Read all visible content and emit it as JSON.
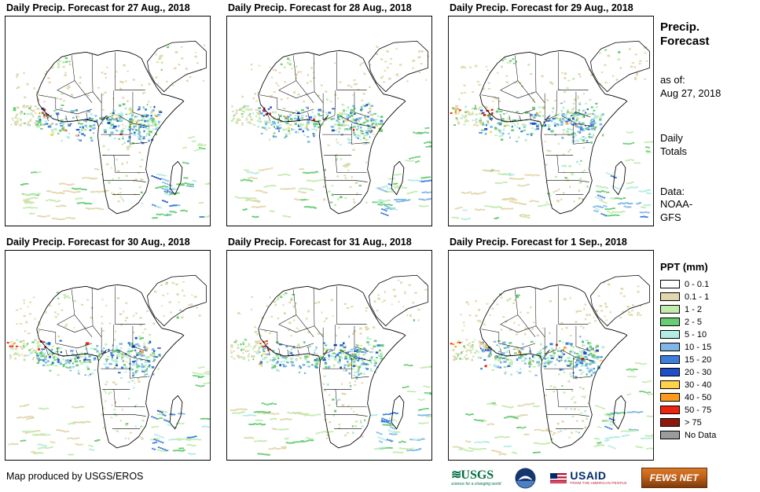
{
  "panels": [
    {
      "title": "Daily Precip. Forecast for 27 Aug., 2018"
    },
    {
      "title": "Daily Precip. Forecast for 28 Aug., 2018"
    },
    {
      "title": "Daily Precip. Forecast for 29 Aug., 2018"
    },
    {
      "title": "Daily Precip. Forecast for 30 Aug., 2018"
    },
    {
      "title": "Daily Precip. Forecast for 31 Aug., 2018"
    },
    {
      "title": "Daily Precip. Forecast for 1 Sep., 2018"
    }
  ],
  "sidebar": {
    "title_line1": "Precip.",
    "title_line2": "Forecast",
    "as_of_label": "as of:",
    "as_of_date": "Aug 27, 2018",
    "daily_line1": "Daily",
    "daily_line2": "Totals",
    "data_label": "Data:",
    "data_source_line1": "NOAA-",
    "data_source_line2": "GFS",
    "legend_title": "PPT (mm)",
    "legend": [
      {
        "label": "0 - 0.1",
        "color": "#FFFFFF"
      },
      {
        "label": "0.1 - 1",
        "color": "#E2D7AC"
      },
      {
        "label": "1 - 2",
        "color": "#C3ECAF"
      },
      {
        "label": "2 - 5",
        "color": "#67CD74"
      },
      {
        "label": "5 - 10",
        "color": "#B3ECE3"
      },
      {
        "label": "10 - 15",
        "color": "#7FB8E6"
      },
      {
        "label": "15 - 20",
        "color": "#3C7EDB"
      },
      {
        "label": "20 - 30",
        "color": "#1E4EC8"
      },
      {
        "label": "30 - 40",
        "color": "#FFD24A"
      },
      {
        "label": "40 - 50",
        "color": "#FD9A1E"
      },
      {
        "label": "50 - 75",
        "color": "#EE2410"
      },
      {
        "label": "> 75",
        "color": "#8F180C"
      },
      {
        "label": "No Data",
        "color": "#9C9C9C"
      }
    ]
  },
  "footer": {
    "credit": "Map produced by USGS/EROS",
    "logos": {
      "usgs_text": "USGS",
      "usgs_tagline": "science for a changing world",
      "usaid_text": "USAID",
      "usaid_tagline": "FROM THE AMERICAN PEOPLE",
      "fewsnet_text": "FEWS NET"
    }
  },
  "colors": {
    "usgs_green": "#006F41",
    "noaa_blue": "#16366F",
    "usaid_blue": "#002A6C",
    "usaid_red": "#BA0C2F",
    "fewsnet_orange": "#C0611A"
  }
}
